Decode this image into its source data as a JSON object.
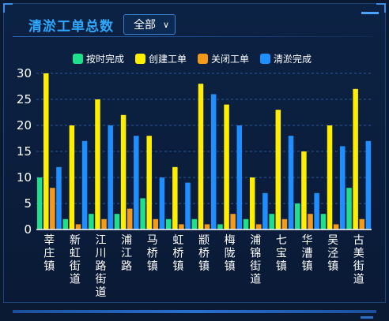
{
  "header": {
    "title": "清淤工单总数",
    "filter_value": "全部"
  },
  "colors": {
    "background": "#0a1a33",
    "title": "#2ea8ff",
    "gridline": "#2a5a9c"
  },
  "chart_data": {
    "type": "bar",
    "title": "",
    "xlabel": "",
    "ylabel": "",
    "ylim": [
      0,
      30
    ],
    "yticks": [
      0,
      5,
      10,
      15,
      20,
      25,
      30
    ],
    "grid": true,
    "legend_position": "top",
    "categories": [
      "莘庄镇",
      "新虹街道",
      "江川路街道",
      "浦江路",
      "马桥镇",
      "虹桥镇",
      "颛桥镇",
      "梅陇镇",
      "浦锦街道",
      "七宝镇",
      "华漕镇",
      "吴泾镇",
      "古美街道"
    ],
    "series": [
      {
        "name": "按时完成",
        "color": "#1fe08a",
        "values": [
          10,
          2,
          3,
          3,
          6,
          2,
          2,
          1,
          2,
          3,
          5,
          3,
          8
        ]
      },
      {
        "name": "创建工单",
        "color": "#ffee00",
        "values": [
          30,
          20,
          25,
          22,
          18,
          12,
          28,
          24,
          10,
          23,
          15,
          20,
          27
        ]
      },
      {
        "name": "关闭工单",
        "color": "#f39a1b",
        "values": [
          8,
          1,
          2,
          4,
          2,
          1,
          1,
          3,
          1,
          2,
          3,
          1,
          2
        ]
      },
      {
        "name": "清淤完成",
        "color": "#1f8fff",
        "values": [
          12,
          17,
          20,
          18,
          10,
          9,
          26,
          20,
          7,
          18,
          7,
          16,
          17
        ]
      }
    ]
  }
}
